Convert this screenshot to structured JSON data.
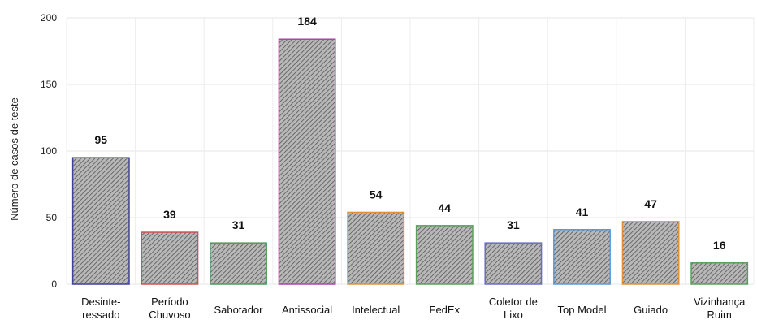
{
  "chart_data": {
    "type": "bar",
    "title": "",
    "xlabel": "",
    "ylabel": "Número de casos de teste",
    "ylim": [
      0,
      200
    ],
    "yticks": [
      0,
      50,
      100,
      150,
      200
    ],
    "grid": true,
    "bar_fill": "hatched-gray",
    "categories": [
      [
        "Desinte-",
        "ressado"
      ],
      [
        "Período",
        "Chuvoso"
      ],
      [
        "Sabotador"
      ],
      [
        "Antissocial"
      ],
      [
        "Intelectual"
      ],
      [
        "FedEx"
      ],
      [
        "Coletor de",
        "Lixo"
      ],
      [
        "Top Model"
      ],
      [
        "Guiado"
      ],
      [
        "Vizinhança",
        "Ruim"
      ]
    ],
    "values": [
      95,
      39,
      31,
      184,
      54,
      44,
      31,
      41,
      47,
      16
    ],
    "bar_outline_colors": [
      "#3f3fa0",
      "#d05050",
      "#4e9a5a",
      "#b040b0",
      "#e0903a",
      "#5aa05a",
      "#6a6ad0",
      "#5a9ad8",
      "#e0903a",
      "#5aa05a"
    ]
  }
}
